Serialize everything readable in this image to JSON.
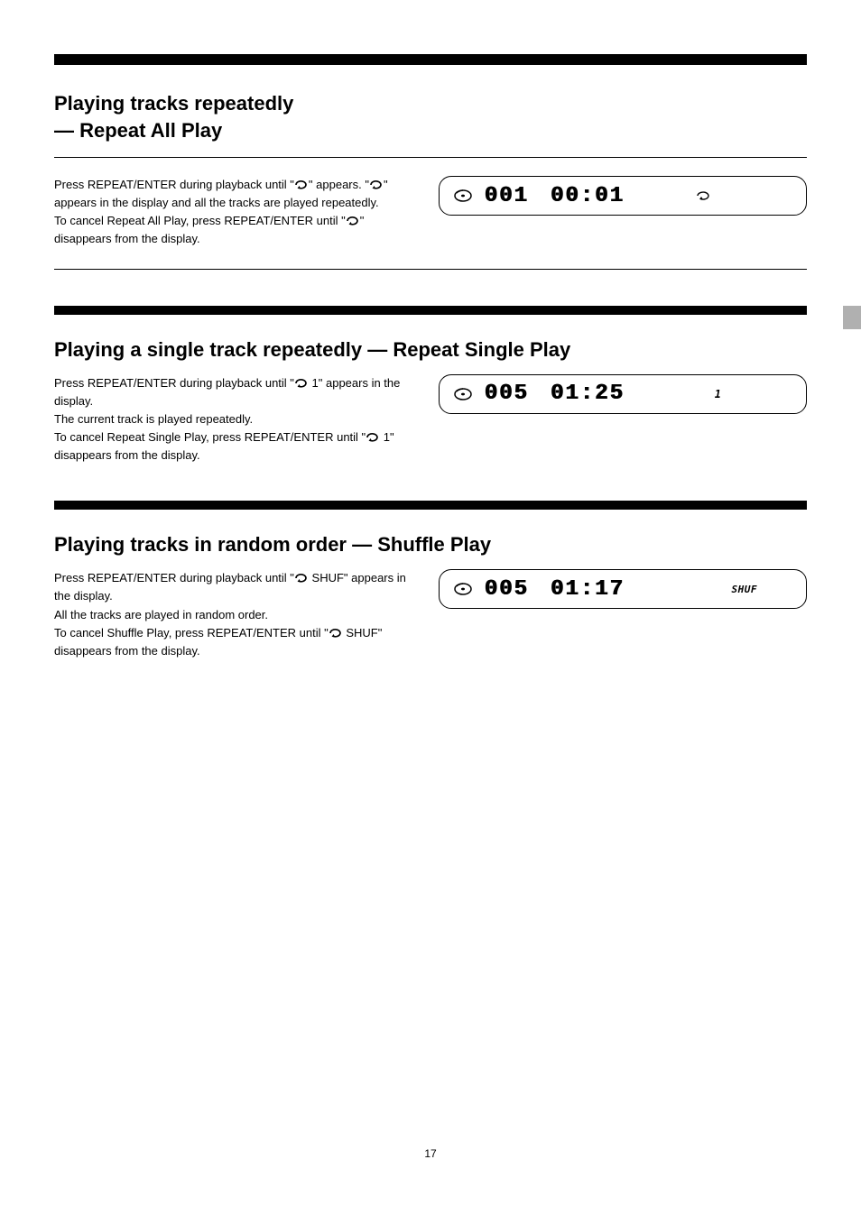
{
  "page_number": "17",
  "repeat_all": {
    "heading": "Playing tracks repeatedly",
    "subheading": "— Repeat All Play",
    "left_html": "Press REPEAT/ENTER during playback until \"$REPEAT_ICON$\" appears. \"$REPEAT_ICON$\" appears in the display and all the tracks are played repeatedly.\nTo cancel Repeat All Play, press REPEAT/ENTER until \"$REPEAT_ICON$\" disappears from the display.",
    "lcd": {
      "track": "001",
      "time": "00:01",
      "indicator_type": "repeat"
    }
  },
  "repeat_single": {
    "heading": "Playing a single track repeatedly — Repeat Single Play",
    "left_html": "Press REPEAT/ENTER during playback until \"$REPEAT_ICON$ 1\" appears in the display.\nThe current track is played repeatedly.\nTo cancel Repeat Single Play, press REPEAT/ENTER until \"$REPEAT_ICON$ 1\" disappears from the display.",
    "lcd": {
      "track": "005",
      "time": "01:25",
      "indicator_type": "one",
      "indicator_text": "1"
    }
  },
  "shuffle": {
    "heading": "Playing tracks in random order — Shuffle Play",
    "left_html": "Press REPEAT/ENTER during playback until \"$REPEAT_ICON$ SHUF\" appears in the display.\nAll the tracks are played in random order.\nTo cancel Shuffle Play, press REPEAT/ENTER until \"$REPEAT_ICON$ SHUF\" disappears from the display.",
    "lcd": {
      "track": "005",
      "time": "01:17",
      "indicator_type": "shuf",
      "indicator_text": "SHUF"
    }
  },
  "colors": {
    "text": "#000000",
    "background": "#ffffff",
    "tab": "#b0b0b0"
  }
}
